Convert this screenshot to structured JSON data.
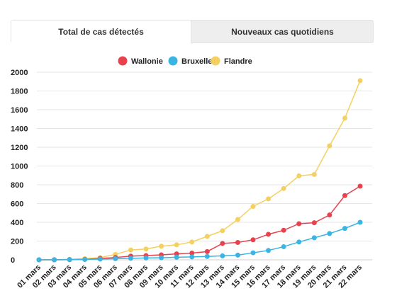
{
  "tabs": [
    {
      "label": "Total de cas détectés",
      "active": true
    },
    {
      "label": "Nouveaux cas quotidiens",
      "active": false
    }
  ],
  "chart_data": {
    "type": "line",
    "title": "",
    "xlabel": "",
    "ylabel": "",
    "ylim": [
      0,
      2000
    ],
    "yticks": [
      0,
      200,
      400,
      600,
      800,
      1000,
      1200,
      1400,
      1600,
      1800,
      2000
    ],
    "grid": true,
    "legend_position": "top-center",
    "categories": [
      "01 mars",
      "02 mars",
      "03 mars",
      "04 mars",
      "05 mars",
      "06 mars",
      "07 mars",
      "08 mars",
      "09 mars",
      "10 mars",
      "11 mars",
      "12 mars",
      "13 mars",
      "14 mars",
      "15 mars",
      "16 mars",
      "17 mars",
      "18 mars",
      "19 mars",
      "20 mars",
      "21 mars",
      "22 mars"
    ],
    "series": [
      {
        "name": "Wallonie",
        "color": "#e8424f",
        "values": [
          0,
          0,
          2,
          5,
          14,
          25,
          40,
          45,
          53,
          63,
          72,
          88,
          175,
          185,
          213,
          272,
          315,
          385,
          395,
          478,
          685,
          785
        ]
      },
      {
        "name": "Bruxelles",
        "color": "#3bb4e3",
        "values": [
          0,
          0,
          2,
          4,
          8,
          12,
          16,
          20,
          22,
          27,
          31,
          36,
          42,
          50,
          75,
          100,
          140,
          190,
          235,
          280,
          335,
          400
        ]
      },
      {
        "name": "Flandre",
        "color": "#f4d061",
        "values": [
          1,
          3,
          6,
          12,
          24,
          58,
          105,
          115,
          145,
          160,
          190,
          250,
          310,
          430,
          570,
          650,
          760,
          895,
          910,
          1215,
          1510,
          1910
        ]
      }
    ]
  }
}
